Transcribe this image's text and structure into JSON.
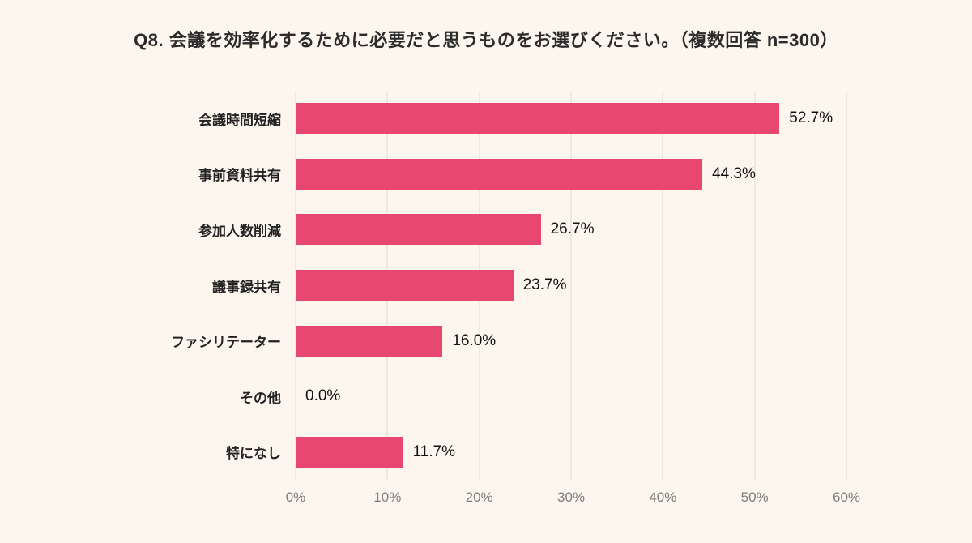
{
  "title": "Q8. 会議を効率化するために必要だと思うものをお選びください。（複数回答 n=300）",
  "colors": {
    "background": "#fdf6ee",
    "bar": "#e8486f",
    "grid": "#ded9d2",
    "text": "#2b2b2b",
    "tick": "#7d7d7d"
  },
  "chart_data": {
    "type": "bar",
    "orientation": "horizontal",
    "title": "Q8. 会議を効率化するために必要だと思うものをお選びください。（複数回答 n=300）",
    "categories": [
      "会議時間短縮",
      "事前資料共有",
      "参加人数削減",
      "議事録共有",
      "ファシリテーター",
      "その他",
      "特になし"
    ],
    "values": [
      52.7,
      44.3,
      26.7,
      23.7,
      16.0,
      0.0,
      11.7
    ],
    "value_labels": [
      "52.7%",
      "44.3%",
      "26.7%",
      "23.7%",
      "16.0%",
      "0.0%",
      "11.7%"
    ],
    "xlim": [
      0,
      60
    ],
    "x_ticks": [
      "0%",
      "10%",
      "20%",
      "30%",
      "40%",
      "50%",
      "60%"
    ],
    "xlabel": "",
    "ylabel": "",
    "grid": "vertical",
    "legend": "none"
  }
}
